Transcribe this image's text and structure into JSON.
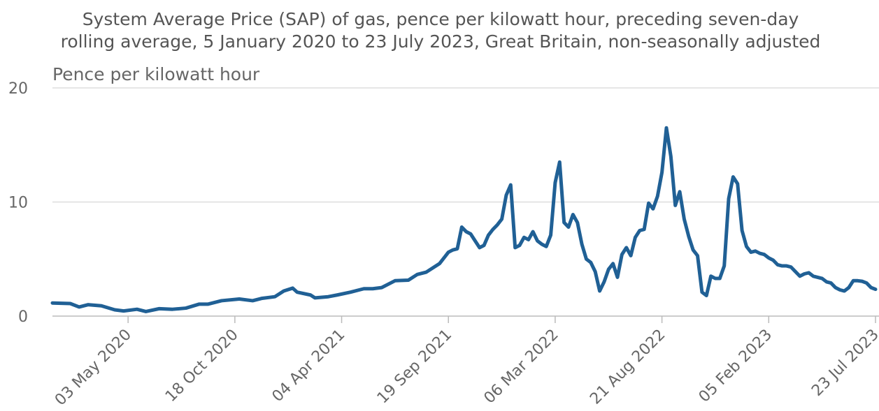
{
  "chart_data": {
    "type": "line",
    "title": "System Average Price (SAP) of gas, pence per kilowatt hour, preceding seven-day rolling average, 5 January 2020 to 23 July 2023, Great Britain, non-seasonally adjusted",
    "y_label": "Pence per kilowatt hour",
    "x": [
      "2020-01-05",
      "2020-02-02",
      "2020-02-16",
      "2020-03-01",
      "2020-03-22",
      "2020-04-12",
      "2020-04-26",
      "2020-05-17",
      "2020-05-31",
      "2020-06-21",
      "2020-07-12",
      "2020-08-02",
      "2020-08-23",
      "2020-09-06",
      "2020-09-27",
      "2020-10-25",
      "2020-11-15",
      "2020-11-29",
      "2020-12-20",
      "2021-01-03",
      "2021-01-17",
      "2021-01-24",
      "2021-02-14",
      "2021-02-21",
      "2021-03-14",
      "2021-03-28",
      "2021-04-18",
      "2021-05-09",
      "2021-05-23",
      "2021-06-06",
      "2021-06-27",
      "2021-07-18",
      "2021-08-01",
      "2021-08-15",
      "2021-09-05",
      "2021-09-19",
      "2021-09-26",
      "2021-10-03",
      "2021-10-10",
      "2021-10-17",
      "2021-10-24",
      "2021-10-31",
      "2021-11-07",
      "2021-11-14",
      "2021-11-21",
      "2021-11-28",
      "2021-12-05",
      "2021-12-12",
      "2021-12-19",
      "2021-12-26",
      "2022-01-02",
      "2022-01-09",
      "2022-01-16",
      "2022-01-23",
      "2022-01-30",
      "2022-02-06",
      "2022-02-13",
      "2022-02-20",
      "2022-02-27",
      "2022-03-06",
      "2022-03-13",
      "2022-03-20",
      "2022-03-27",
      "2022-04-03",
      "2022-04-10",
      "2022-04-17",
      "2022-04-24",
      "2022-05-01",
      "2022-05-08",
      "2022-05-15",
      "2022-05-22",
      "2022-05-29",
      "2022-06-05",
      "2022-06-12",
      "2022-06-19",
      "2022-06-26",
      "2022-07-03",
      "2022-07-10",
      "2022-07-17",
      "2022-07-24",
      "2022-07-31",
      "2022-08-07",
      "2022-08-14",
      "2022-08-21",
      "2022-08-28",
      "2022-09-04",
      "2022-09-11",
      "2022-09-18",
      "2022-09-25",
      "2022-10-02",
      "2022-10-09",
      "2022-10-16",
      "2022-10-23",
      "2022-10-30",
      "2022-11-06",
      "2022-11-13",
      "2022-11-20",
      "2022-11-27",
      "2022-12-04",
      "2022-12-11",
      "2022-12-18",
      "2022-12-25",
      "2023-01-01",
      "2023-01-08",
      "2023-01-15",
      "2023-01-22",
      "2023-01-29",
      "2023-02-05",
      "2023-02-12",
      "2023-02-19",
      "2023-02-26",
      "2023-03-05",
      "2023-03-12",
      "2023-03-19",
      "2023-03-26",
      "2023-04-02",
      "2023-04-09",
      "2023-04-16",
      "2023-04-23",
      "2023-04-30",
      "2023-05-07",
      "2023-05-14",
      "2023-05-21",
      "2023-05-28",
      "2023-06-04",
      "2023-06-11",
      "2023-06-18",
      "2023-06-25",
      "2023-07-02",
      "2023-07-09",
      "2023-07-16",
      "2023-07-23"
    ],
    "series": [
      {
        "name": "SAP",
        "color": "#206095",
        "values": [
          1.15,
          1.1,
          0.8,
          1.0,
          0.9,
          0.55,
          0.45,
          0.6,
          0.4,
          0.65,
          0.6,
          0.7,
          1.05,
          1.05,
          1.35,
          1.5,
          1.35,
          1.55,
          1.7,
          2.2,
          2.45,
          2.1,
          1.85,
          1.6,
          1.7,
          1.85,
          2.1,
          2.4,
          2.4,
          2.5,
          3.1,
          3.15,
          3.65,
          3.85,
          4.6,
          5.6,
          5.8,
          5.9,
          7.8,
          7.4,
          7.2,
          6.6,
          6.0,
          6.2,
          7.1,
          7.6,
          8.0,
          8.5,
          10.6,
          11.5,
          6.0,
          6.2,
          6.9,
          6.7,
          7.4,
          6.6,
          6.3,
          6.1,
          7.1,
          11.7,
          13.5,
          8.2,
          7.8,
          8.9,
          8.2,
          6.3,
          5.0,
          4.7,
          3.9,
          2.2,
          3.0,
          4.1,
          4.6,
          3.4,
          5.4,
          6.0,
          5.3,
          6.9,
          7.5,
          7.6,
          9.9,
          9.4,
          10.5,
          12.6,
          16.5,
          14.0,
          9.7,
          10.9,
          8.5,
          7.0,
          5.8,
          5.3,
          2.1,
          1.8,
          3.5,
          3.3,
          3.3,
          4.4,
          10.3,
          12.2,
          11.6,
          7.5,
          6.1,
          5.6,
          5.7,
          5.5,
          5.4,
          5.1,
          4.9,
          4.5,
          4.4,
          4.4,
          4.3,
          3.9,
          3.5,
          3.7,
          3.8,
          3.5,
          3.4,
          3.3,
          3.0,
          2.9,
          2.5,
          2.3,
          2.2,
          2.5,
          3.1,
          3.1,
          3.05,
          2.9,
          2.5,
          2.35
        ]
      }
    ],
    "xlim": [
      "2020-01-05",
      "2023-07-23"
    ],
    "xticks": [
      {
        "value": "2020-05-03",
        "label": "03 May 2020"
      },
      {
        "value": "2020-10-18",
        "label": "18 Oct 2020"
      },
      {
        "value": "2021-04-04",
        "label": "04 Apr 2021"
      },
      {
        "value": "2021-09-19",
        "label": "19 Sep 2021"
      },
      {
        "value": "2022-03-06",
        "label": "06 Mar 2022"
      },
      {
        "value": "2022-08-21",
        "label": "21 Aug 2022"
      },
      {
        "value": "2023-02-05",
        "label": "05 Feb 2023"
      },
      {
        "value": "2023-07-23",
        "label": "23 Jul 2023"
      }
    ],
    "ylim": [
      0,
      20
    ],
    "yticks": [
      0,
      10,
      20
    ],
    "grid": true
  }
}
